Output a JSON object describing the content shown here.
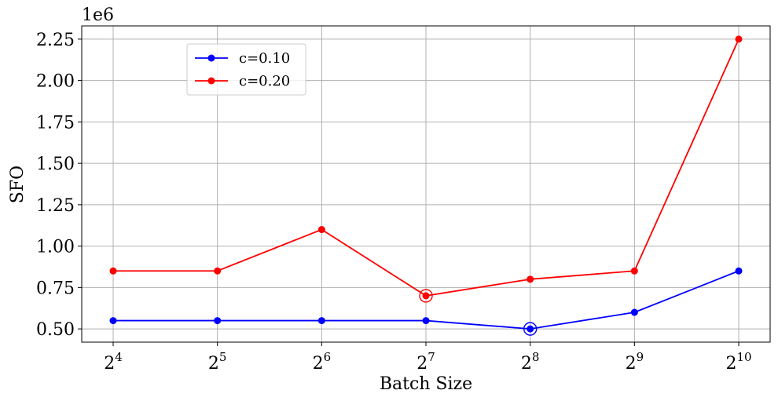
{
  "chart_data": {
    "type": "line",
    "x_exponents": [
      4,
      5,
      6,
      7,
      8,
      9,
      10
    ],
    "x_tick_base": "2",
    "xlabel": "Batch Size",
    "ylabel": "SFO",
    "y_scale_label": "1e6",
    "y_ticks": [
      "0.50",
      "0.75",
      "1.00",
      "1.25",
      "1.50",
      "1.75",
      "2.00",
      "2.25"
    ],
    "y_tick_values": [
      0.5,
      0.75,
      1.0,
      1.25,
      1.5,
      1.75,
      2.0,
      2.25
    ],
    "ylim": [
      0.42,
      2.33
    ],
    "grid": true,
    "legend_position": "upper-left",
    "series": [
      {
        "name": "c=0.10",
        "color": "#0000ff",
        "values": [
          0.55,
          0.55,
          0.55,
          0.55,
          0.5,
          0.6,
          0.85
        ],
        "highlight_index": 4
      },
      {
        "name": "c=0.20",
        "color": "#ff0000",
        "values": [
          0.85,
          0.85,
          1.1,
          0.7,
          0.8,
          0.85,
          2.25
        ],
        "highlight_index": 3
      }
    ]
  }
}
